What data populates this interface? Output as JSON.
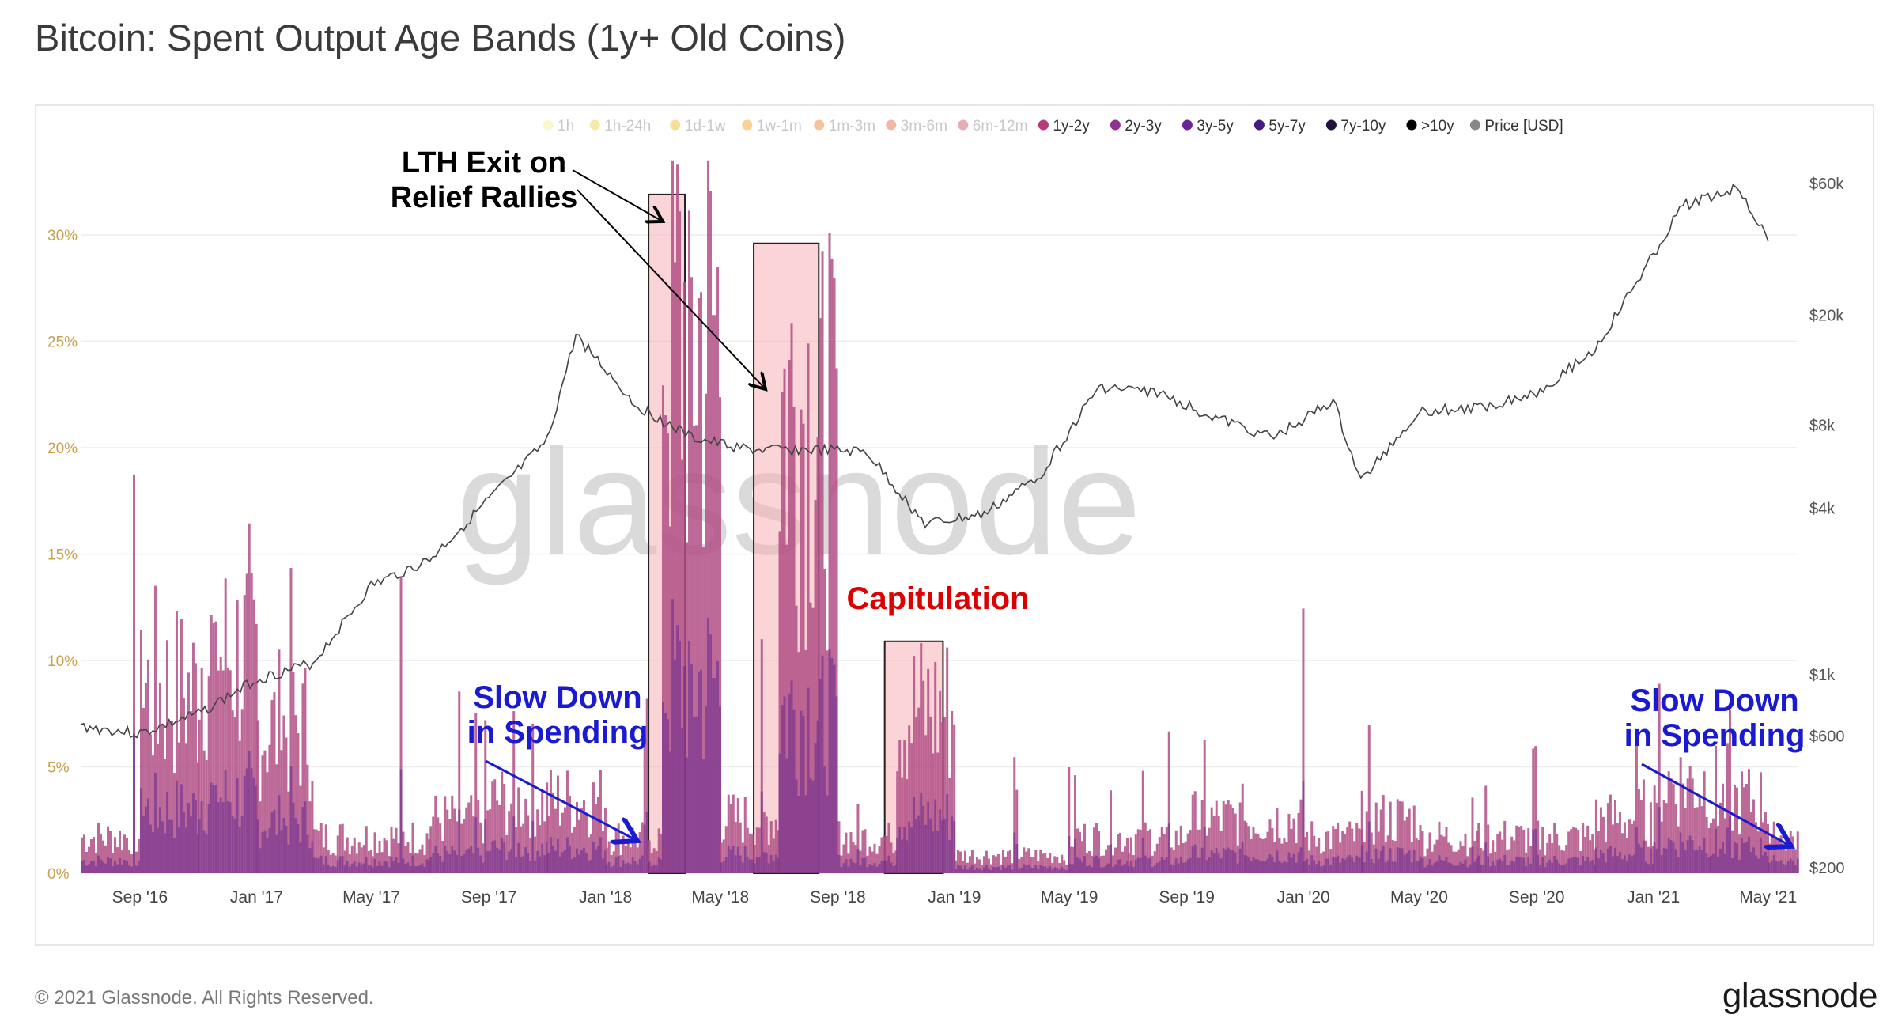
{
  "page": {
    "title": "Bitcoin: Spent Output Age Bands (1y+ Old Coins)",
    "copyright": "© 2021 Glassnode. All Rights Reserved.",
    "brand": "glassnode",
    "watermark": "glassnode"
  },
  "chart_data": {
    "type": "area",
    "title": "Bitcoin: Spent Output Age Bands (1y+ Old Coins)",
    "legend_placement": "top-right",
    "legend": [
      {
        "name": "1h",
        "color": "#f4ee8a",
        "active": false
      },
      {
        "name": "1h-24h",
        "color": "#e8d23a",
        "active": false
      },
      {
        "name": "1d-1w",
        "color": "#f2b51c",
        "active": false
      },
      {
        "name": "1w-1m",
        "color": "#f59a1c",
        "active": false
      },
      {
        "name": "1m-3m",
        "color": "#ee7b2a",
        "active": false
      },
      {
        "name": "3m-6m",
        "color": "#e0613f",
        "active": false
      },
      {
        "name": "6m-12m",
        "color": "#cc4a57",
        "active": false
      },
      {
        "name": "1y-2y",
        "color": "#b53c7a",
        "active": true
      },
      {
        "name": "2y-3y",
        "color": "#92328f",
        "active": true
      },
      {
        "name": "3y-5y",
        "color": "#6c2597",
        "active": true
      },
      {
        "name": "5y-7y",
        "color": "#481a80",
        "active": true
      },
      {
        "name": "7y-10y",
        "color": "#22113f",
        "active": true
      },
      {
        "name": ">10y",
        "color": "#000000",
        "active": true
      },
      {
        "name": "Price [USD]",
        "color": "#888888",
        "active": true
      }
    ],
    "x_ticks": [
      "Sep '16",
      "Jan '17",
      "May '17",
      "Sep '17",
      "Jan '18",
      "May '18",
      "Sep '18",
      "Jan '19",
      "May '19",
      "Sep '19",
      "Jan '20",
      "May '20",
      "Sep '20",
      "Jan '21",
      "May '21"
    ],
    "y_left": {
      "ticks": [
        "0%",
        "5%",
        "10%",
        "15%",
        "20%",
        "25%",
        "30%"
      ],
      "ylim": [
        0,
        34
      ]
    },
    "y_right": {
      "ticks": [
        "$200",
        "$600",
        "$1k",
        "$4k",
        "$8k",
        "$20k",
        "$60k"
      ],
      "scale": "log"
    },
    "series": [
      {
        "name": "1y+ spent output share (stacked age bands)",
        "x": [
          "2016-07",
          "2016-09",
          "2016-11",
          "2017-01",
          "2017-03",
          "2017-05",
          "2017-07",
          "2017-09",
          "2017-11",
          "2018-01",
          "2018-03",
          "2018-05",
          "2018-07",
          "2018-09",
          "2018-11",
          "2019-01",
          "2019-03",
          "2019-05",
          "2019-07",
          "2019-09",
          "2019-11",
          "2020-01",
          "2020-03",
          "2020-05",
          "2020-07",
          "2020-09",
          "2020-11",
          "2021-01",
          "2021-03",
          "2021-05"
        ],
        "values": [
          2,
          10,
          12,
          8,
          2,
          2,
          3,
          4,
          4,
          2,
          30,
          3,
          26,
          2,
          9,
          1,
          1,
          2,
          2,
          3,
          3,
          2,
          3,
          2,
          2,
          2,
          3,
          5,
          4,
          2
        ],
        "peaks": [
          19,
          18,
          17,
          19,
          16,
          16,
          9,
          9,
          14,
          9,
          34,
          12,
          31,
          4,
          10,
          3,
          6,
          7,
          7,
          7,
          17,
          5,
          7,
          5,
          7,
          7,
          7,
          10,
          8,
          3
        ]
      },
      {
        "name": "Price [USD]",
        "x": [
          "2016-07",
          "2016-09",
          "2016-11",
          "2017-01",
          "2017-03",
          "2017-05",
          "2017-07",
          "2017-09",
          "2017-11",
          "2017-12",
          "2018-02",
          "2018-04",
          "2018-06",
          "2018-08",
          "2018-10",
          "2018-12",
          "2019-02",
          "2019-04",
          "2019-06",
          "2019-08",
          "2019-10",
          "2019-12",
          "2020-02",
          "2020-03",
          "2020-05",
          "2020-07",
          "2020-09",
          "2020-11",
          "2021-01",
          "2021-02",
          "2021-04",
          "2021-05"
        ],
        "values": [
          650,
          610,
          720,
          960,
          1100,
          2100,
          2600,
          4300,
          7000,
          17000,
          9500,
          7200,
          6500,
          6500,
          6400,
          3500,
          3800,
          5300,
          11000,
          10500,
          8500,
          7200,
          9800,
          5000,
          9000,
          9200,
          10500,
          15000,
          33000,
          50000,
          58000,
          37000
        ]
      }
    ],
    "annotations": [
      {
        "text": "LTH Exit on Relief Rallies",
        "color": "#000000"
      },
      {
        "text": "Capitulation",
        "color": "#dd0000"
      },
      {
        "text": "Slow Down in Spending",
        "color": "#1a1ad0"
      },
      {
        "text": "Slow Down in Spending",
        "color": "#1a1ad0"
      }
    ],
    "highlight_boxes": [
      "2018-02 to 2018-03",
      "2018-06 to 2018-08",
      "2018-11 to 2018-12"
    ]
  }
}
